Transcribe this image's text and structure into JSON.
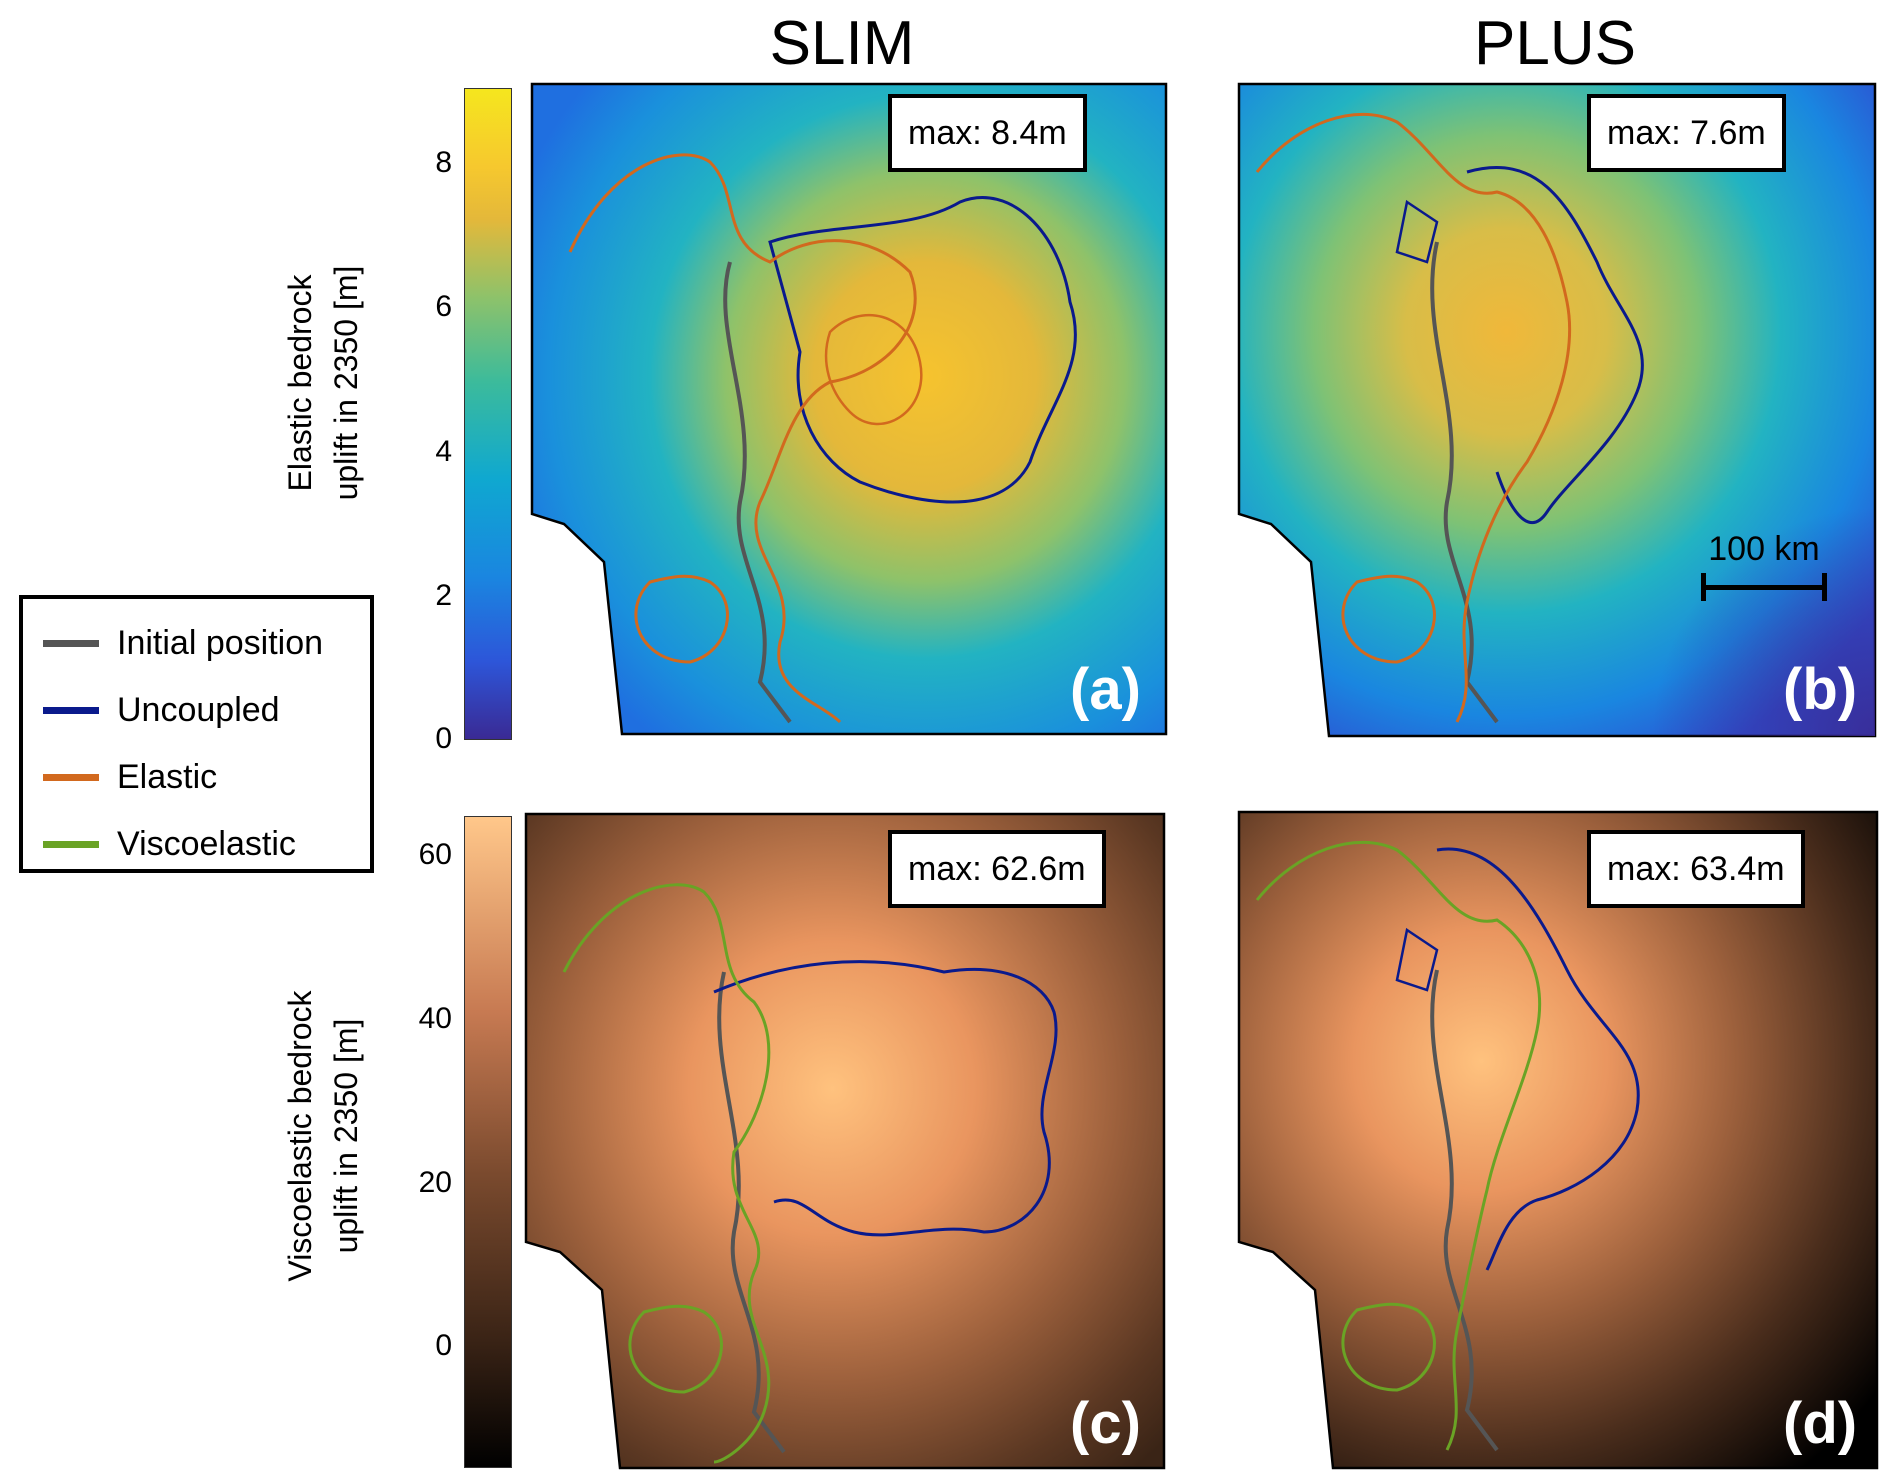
{
  "columns": {
    "left": "SLIM",
    "right": "PLUS"
  },
  "colorbar_top": {
    "label_line1": "Elastic bedrock",
    "label_line2": "uplift in 2350 [m]",
    "ticks": [
      "8",
      "6",
      "4",
      "2",
      "0"
    ],
    "range": [
      0,
      9
    ]
  },
  "colorbar_bottom": {
    "label_line1": "Viscoelastic bedrock",
    "label_line2": "uplift in 2350 [m]",
    "ticks": [
      "60",
      "40",
      "20",
      "0"
    ],
    "range": [
      -15,
      65
    ]
  },
  "panels": {
    "a": {
      "label": "(a)",
      "max": "max: 8.4m"
    },
    "b": {
      "label": "(b)",
      "max": "max: 7.6m",
      "scalebar": "100 km"
    },
    "c": {
      "label": "(c)",
      "max": "max: 62.6m"
    },
    "d": {
      "label": "(d)",
      "max": "max: 63.4m"
    }
  },
  "legend": {
    "items": [
      {
        "label": "Initial position",
        "color": "#555555"
      },
      {
        "label": "Uncoupled",
        "color": "#0a1a8c"
      },
      {
        "label": "Elastic",
        "color": "#d2691e"
      },
      {
        "label": "Viscoelastic",
        "color": "#6aa325"
      }
    ]
  },
  "colors": {
    "parula_low": "#3a2a94",
    "parula_mid": "#22b3c2",
    "parula_high": "#f5e61e",
    "copper_low": "#000000",
    "copper_high": "#ffc78a"
  }
}
